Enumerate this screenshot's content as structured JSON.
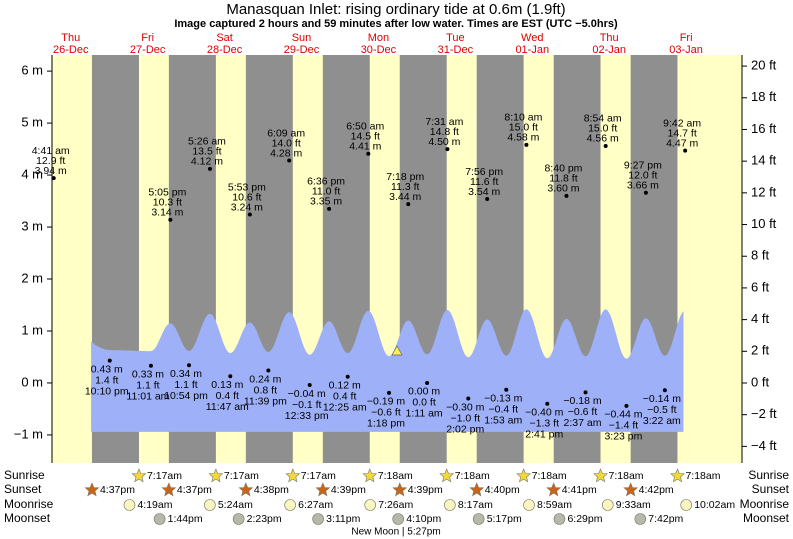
{
  "chart_data": {
    "type": "tide",
    "title": "Manasquan Inlet: rising  ordinary tide at 0.6m (1.9ft)",
    "subtitle": "Image captured 2 hours and 59 minutes after low water. Times are EST (UTC −5.0hrs)",
    "ylim": [
      -1.54,
      6.31
    ],
    "yticks": [
      {
        "value": -1,
        "label": "−1 m"
      },
      {
        "value": 0,
        "label": "0 m"
      },
      {
        "value": 1,
        "label": "1 m"
      },
      {
        "value": 2,
        "label": "2 m"
      },
      {
        "value": 3,
        "label": "3 m"
      },
      {
        "value": 4,
        "label": "4 m"
      },
      {
        "value": 5,
        "label": "5 m"
      },
      {
        "value": 6,
        "label": "6 m"
      }
    ],
    "y2lim": [
      -5.05,
      20.7
    ],
    "y2ticks": [
      {
        "value": -4,
        "label": "−4 ft"
      },
      {
        "value": -2,
        "label": "−2 ft"
      },
      {
        "value": 0,
        "label": "0 ft"
      },
      {
        "value": 2,
        "label": "2 ft"
      },
      {
        "value": 4,
        "label": "4 ft"
      },
      {
        "value": 6,
        "label": "6 ft"
      },
      {
        "value": 8,
        "label": "8 ft"
      },
      {
        "value": 10,
        "label": "10 ft"
      },
      {
        "value": 12,
        "label": "12 ft"
      },
      {
        "value": 14,
        "label": "14 ft"
      },
      {
        "value": 16,
        "label": "16 ft"
      },
      {
        "value": 18,
        "label": "18 ft"
      },
      {
        "value": 20,
        "label": "20 ft"
      }
    ],
    "row_labels": {
      "sunrise": "Sunrise",
      "sunset": "Sunset",
      "moonrise": "Moonrise",
      "moonset": "Moonset"
    },
    "moon_phase": "New Moon | 5:27pm",
    "days": [
      {
        "dow": "Thu",
        "date": "26-Dec",
        "sunset": "4:37pm",
        "tides": [
          {
            "time": "4:41 am",
            "ft": 12.9,
            "ft_label": "12.9 ft",
            "m": 3.94,
            "m_label": "3.94 m"
          },
          {
            "time": "10:10 pm",
            "ft": 1.4,
            "ft_label": "1.4 ft",
            "m": 0.43,
            "m_label": "0.43 m"
          }
        ]
      },
      {
        "dow": "Fri",
        "date": "27-Dec",
        "sunrise": "7:17am",
        "sunset": "4:37pm",
        "moonrise": "4:19am",
        "moonset": "1:44pm",
        "tides": [
          {
            "time": "11:01 am",
            "ft": 1.1,
            "ft_label": "1.1 ft",
            "m": 0.33,
            "m_label": "0.33 m"
          },
          {
            "time": "5:05 pm",
            "ft": 10.3,
            "ft_label": "10.3 ft",
            "m": 3.14,
            "m_label": "3.14 m"
          },
          {
            "time": "10:54 pm",
            "ft": 1.1,
            "ft_label": "1.1 ft",
            "m": 0.34,
            "m_label": "0.34 m"
          }
        ]
      },
      {
        "dow": "Sat",
        "date": "28-Dec",
        "sunrise": "7:17am",
        "sunset": "4:38pm",
        "moonrise": "5:24am",
        "moonset": "2:23pm",
        "tides": [
          {
            "time": "5:26 am",
            "ft": 13.5,
            "ft_label": "13.5 ft",
            "m": 4.12,
            "m_label": "4.12 m"
          },
          {
            "time": "11:47 am",
            "ft": 0.4,
            "ft_label": "0.4 ft",
            "m": 0.13,
            "m_label": "0.13 m"
          },
          {
            "time": "5:53 pm",
            "ft": 10.6,
            "ft_label": "10.6 ft",
            "m": 3.24,
            "m_label": "3.24 m"
          },
          {
            "time": "11:39 pm",
            "ft": 0.8,
            "ft_label": "0.8 ft",
            "m": 0.24,
            "m_label": "0.24 m"
          }
        ]
      },
      {
        "dow": "Sun",
        "date": "29-Dec",
        "sunrise": "7:17am",
        "sunset": "4:39pm",
        "moonrise": "6:27am",
        "moonset": "3:11pm",
        "tides": [
          {
            "time": "6:09 am",
            "ft": 14.0,
            "ft_label": "14.0 ft",
            "m": 4.28,
            "m_label": "4.28 m"
          },
          {
            "time": "12:33 pm",
            "ft": -0.1,
            "ft_label": "−0.1 ft",
            "m": -0.04,
            "m_label": "−0.04 m"
          },
          {
            "time": "6:36 pm",
            "ft": 11.0,
            "ft_label": "11.0 ft",
            "m": 3.35,
            "m_label": "3.35 m"
          }
        ]
      },
      {
        "dow": "Mon",
        "date": "30-Dec",
        "sunrise": "7:18am",
        "sunset": "4:39pm",
        "moonrise": "7:26am",
        "moonset": "4:10pm",
        "tides": [
          {
            "time": "12:25 am",
            "ft": 0.4,
            "ft_label": "0.4 ft",
            "m": 0.12,
            "m_label": "0.12 m"
          },
          {
            "time": "6:50 am",
            "ft": 14.5,
            "ft_label": "14.5 ft",
            "m": 4.41,
            "m_label": "4.41 m"
          },
          {
            "time": "1:18 pm",
            "ft": -0.6,
            "ft_label": "−0.6 ft",
            "m": -0.19,
            "m_label": "−0.19 m"
          },
          {
            "time": "7:18 pm",
            "ft": 11.3,
            "ft_label": "11.3 ft",
            "m": 3.44,
            "m_label": "3.44 m"
          }
        ]
      },
      {
        "dow": "Tue",
        "date": "31-Dec",
        "sunrise": "7:18am",
        "sunset": "4:40pm",
        "moonrise": "8:17am",
        "moonset": "5:17pm",
        "tides": [
          {
            "time": "1:11 am",
            "ft": 0.0,
            "ft_label": "0.0 ft",
            "m": 0.0,
            "m_label": "0.00 m"
          },
          {
            "time": "7:31 am",
            "ft": 14.8,
            "ft_label": "14.8 ft",
            "m": 4.5,
            "m_label": "4.50 m"
          },
          {
            "time": "2:02 pm",
            "ft": -1.0,
            "ft_label": "−1.0 ft",
            "m": -0.3,
            "m_label": "−0.30 m"
          },
          {
            "time": "7:56 pm",
            "ft": 11.6,
            "ft_label": "11.6 ft",
            "m": 3.54,
            "m_label": "3.54 m"
          }
        ]
      },
      {
        "dow": "Wed",
        "date": "01-Jan",
        "sunrise": "7:18am",
        "sunset": "4:41pm",
        "moonrise": "8:59am",
        "moonset": "6:29pm",
        "tides": [
          {
            "time": "1:53 am",
            "ft": -0.4,
            "ft_label": "−0.4 ft",
            "m": -0.13,
            "m_label": "−0.13 m"
          },
          {
            "time": "8:10 am",
            "ft": 15.0,
            "ft_label": "15.0 ft",
            "m": 4.58,
            "m_label": "4.58 m"
          },
          {
            "time": "2:41 pm",
            "ft": -1.3,
            "ft_label": "−1.3 ft",
            "m": -0.4,
            "m_label": "−0.40 m"
          },
          {
            "time": "8:40 pm",
            "ft": 11.8,
            "ft_label": "11.8 ft",
            "m": 3.6,
            "m_label": "3.60 m"
          }
        ]
      },
      {
        "dow": "Thu",
        "date": "02-Jan",
        "sunrise": "7:18am",
        "sunset": "4:42pm",
        "moonrise": "9:33am",
        "moonset": "7:42pm",
        "tides": [
          {
            "time": "2:37 am",
            "ft": -0.6,
            "ft_label": "−0.6 ft",
            "m": -0.18,
            "m_label": "−0.18 m"
          },
          {
            "time": "8:54 am",
            "ft": 15.0,
            "ft_label": "15.0 ft",
            "m": 4.56,
            "m_label": "4.56 m"
          },
          {
            "time": "3:23 pm",
            "ft": -1.4,
            "ft_label": "−1.4 ft",
            "m": -0.44,
            "m_label": "−0.44 m"
          },
          {
            "time": "9:27 pm",
            "ft": 12.0,
            "ft_label": "12.0 ft",
            "m": 3.66,
            "m_label": "3.66 m"
          }
        ]
      },
      {
        "dow": "Fri",
        "date": "03-Jan",
        "sunrise": "7:18am",
        "moonrise": "10:02am",
        "tides": [
          {
            "time": "3:22 am",
            "ft": -0.5,
            "ft_label": "−0.5 ft",
            "m": -0.14,
            "m_label": "−0.14 m"
          },
          {
            "time": "9:42 am",
            "ft": 14.7,
            "ft_label": "14.7 ft",
            "m": 4.47,
            "m_label": "4.47 m"
          }
        ]
      }
    ]
  }
}
